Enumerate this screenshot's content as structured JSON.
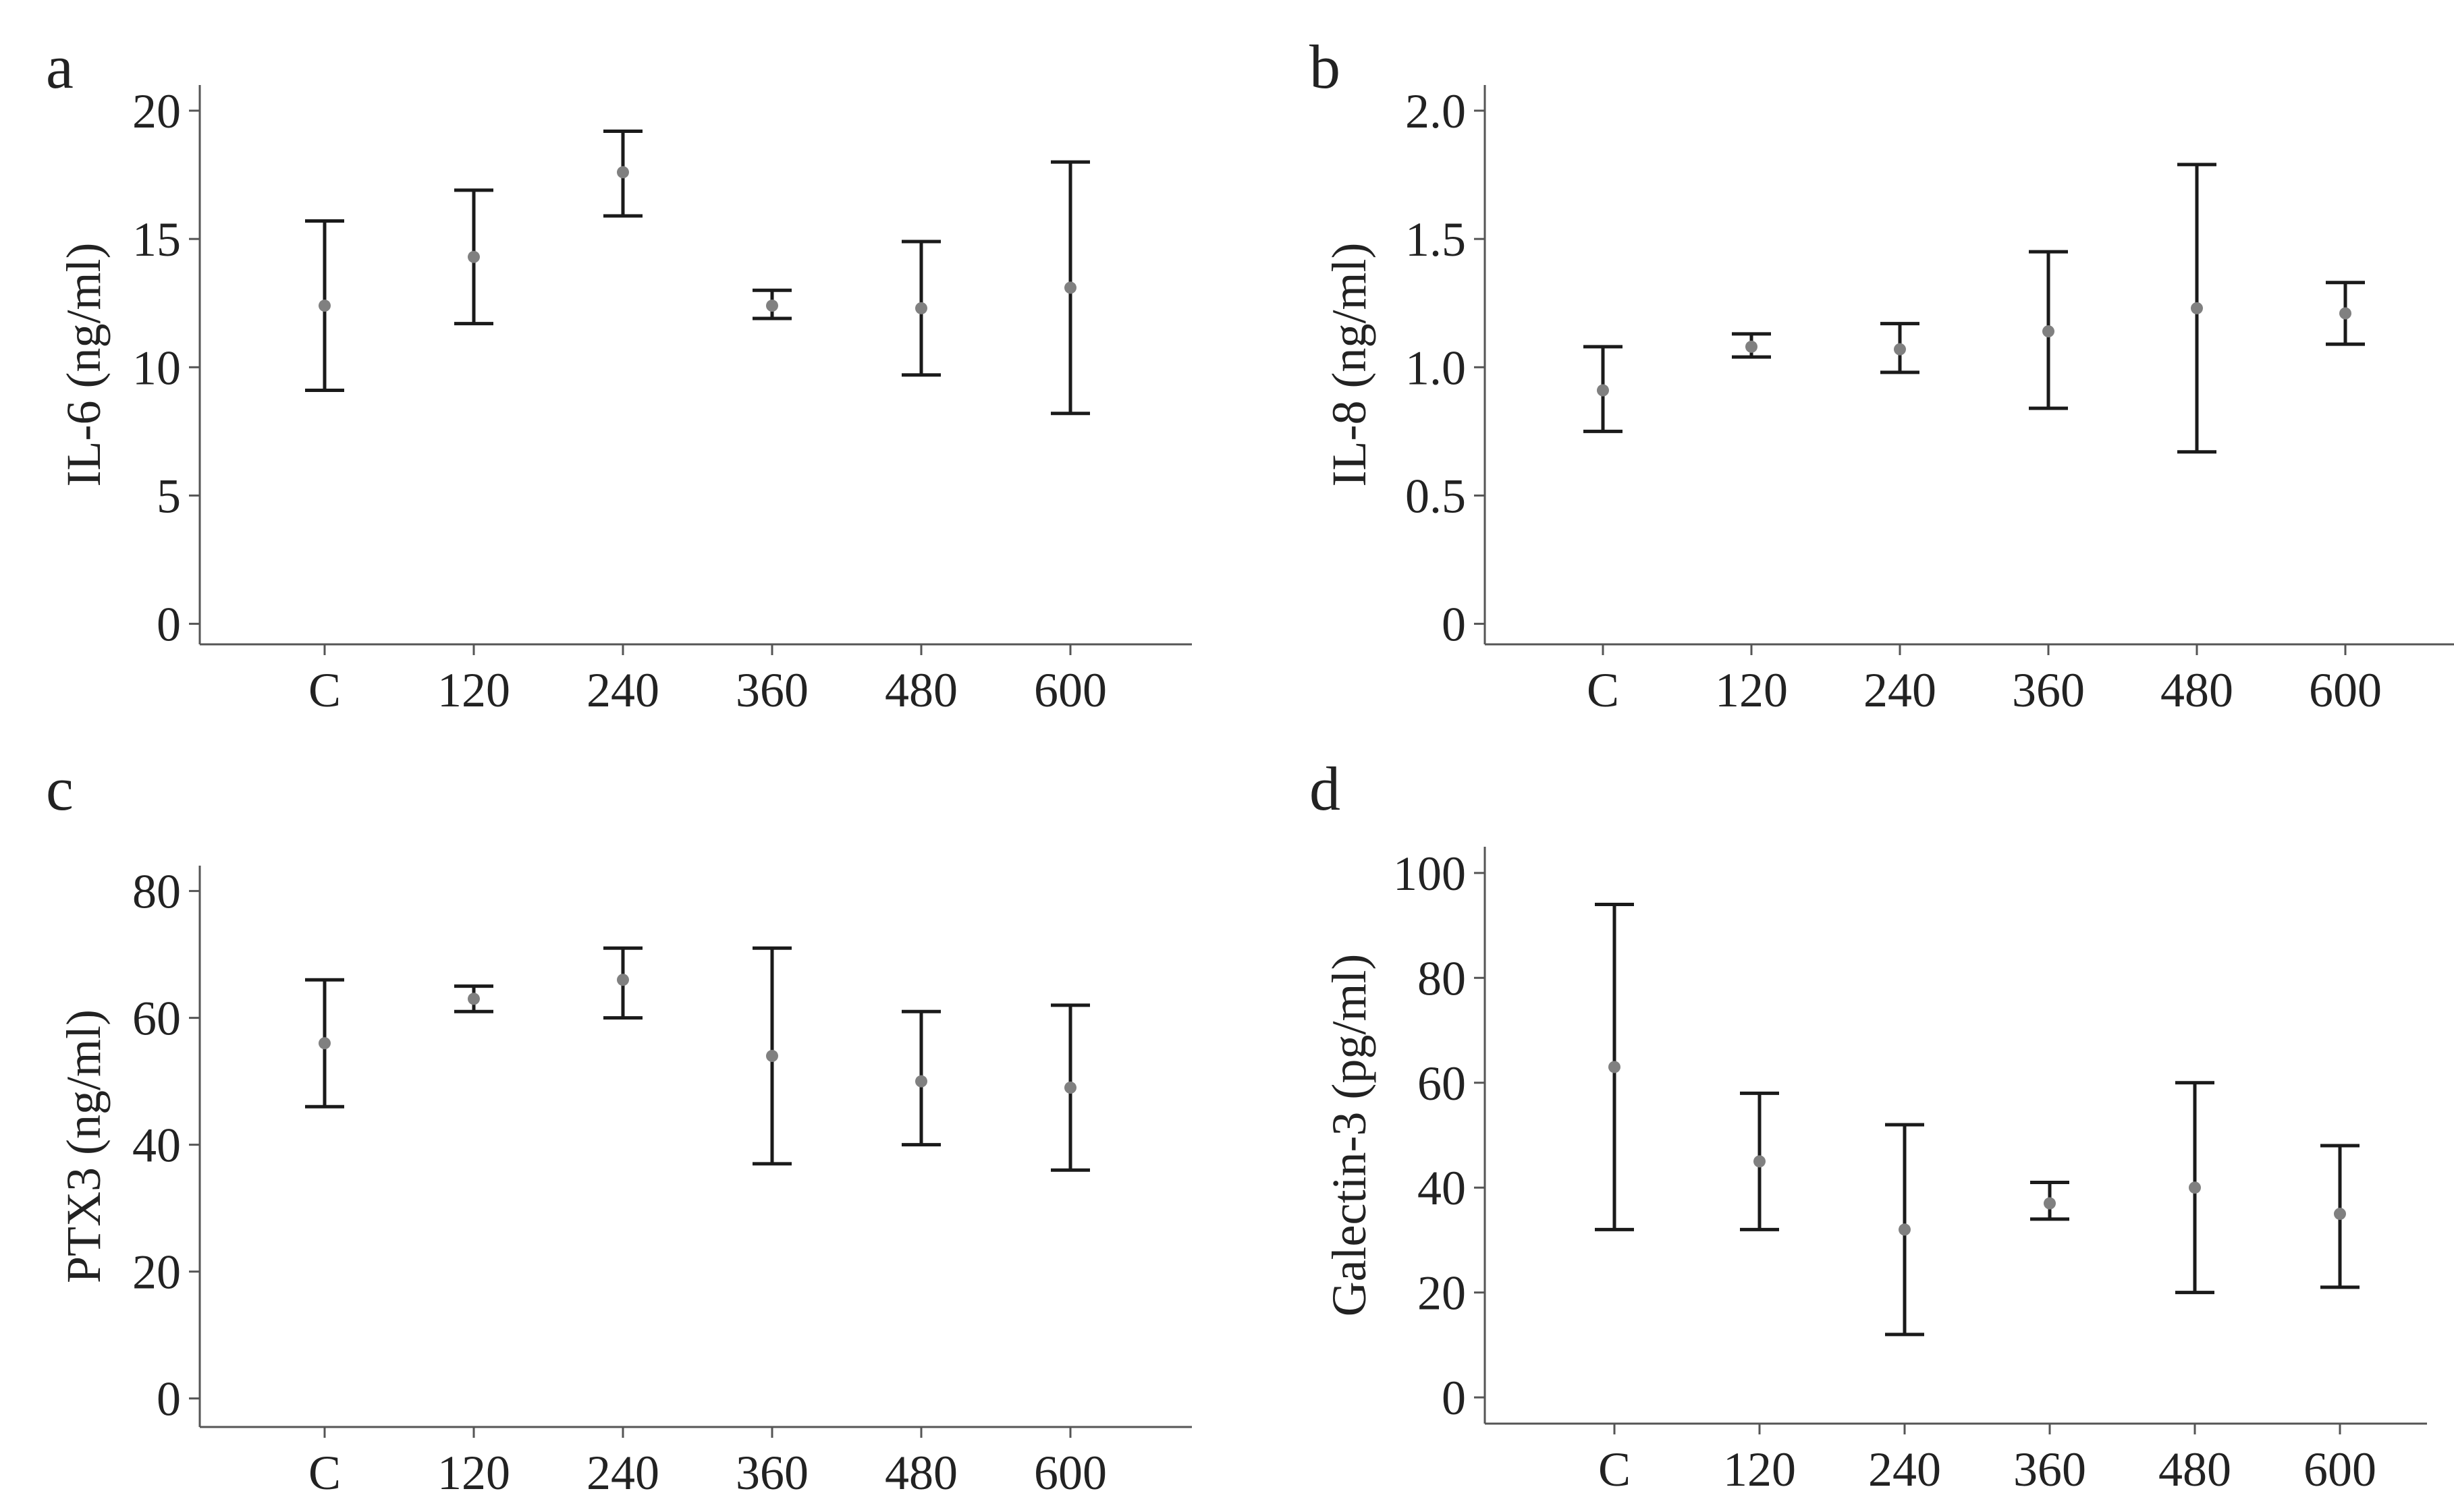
{
  "figure": {
    "colors": {
      "axis": "#555555",
      "errorbar": "#1a1a1a",
      "point": "#808080",
      "text": "#222222"
    }
  },
  "chart_data": [
    {
      "panel": "a",
      "type": "errorbar",
      "categories": [
        "C",
        "120",
        "240",
        "360",
        "480",
        "600"
      ],
      "series": [
        {
          "mean": [
            12.4,
            14.3,
            17.6,
            12.4,
            12.3,
            13.1
          ],
          "lower": [
            9.1,
            11.7,
            15.9,
            11.9,
            9.7,
            8.2
          ],
          "upper": [
            15.7,
            16.9,
            19.2,
            13.0,
            14.9,
            18.0
          ]
        }
      ],
      "xlabel": "",
      "ylabel": "IL-6 (ng/ml)",
      "yticks": [
        0,
        5,
        10,
        15,
        20
      ],
      "ytick_labels": [
        "0",
        "5",
        "10",
        "15",
        "20"
      ],
      "ylim": [
        -0.8,
        21
      ],
      "grid": false,
      "legend": "none"
    },
    {
      "panel": "b",
      "type": "errorbar",
      "categories": [
        "C",
        "120",
        "240",
        "360",
        "480",
        "600"
      ],
      "series": [
        {
          "mean": [
            0.91,
            1.08,
            1.07,
            1.14,
            1.23,
            1.21
          ],
          "lower": [
            0.75,
            1.04,
            0.98,
            0.84,
            0.67,
            1.09
          ],
          "upper": [
            1.08,
            1.13,
            1.17,
            1.45,
            1.79,
            1.33
          ]
        }
      ],
      "xlabel": "",
      "ylabel": "IL-8 (ng/ml)",
      "yticks": [
        0,
        0.5,
        1.0,
        1.5,
        2.0
      ],
      "ytick_labels": [
        "0",
        "0.5",
        "1.0",
        "1.5",
        "2.0"
      ],
      "ylim": [
        -0.08,
        2.1
      ],
      "grid": false,
      "legend": "none"
    },
    {
      "panel": "c",
      "type": "errorbar",
      "categories": [
        "C",
        "120",
        "240",
        "360",
        "480",
        "600"
      ],
      "series": [
        {
          "mean": [
            56,
            63,
            66,
            54,
            50,
            49
          ],
          "lower": [
            46,
            61,
            60,
            37,
            40,
            36
          ],
          "upper": [
            66,
            65,
            71,
            71,
            61,
            62
          ]
        }
      ],
      "xlabel": "",
      "ylabel": "PTX3 (ng/ml)",
      "yticks": [
        0,
        20,
        40,
        60,
        80
      ],
      "ytick_labels": [
        "0",
        "20",
        "40",
        "60",
        "80"
      ],
      "ylim": [
        -4.5,
        84
      ],
      "grid": false,
      "legend": "none"
    },
    {
      "panel": "d",
      "type": "errorbar",
      "categories": [
        "C",
        "120",
        "240",
        "360",
        "480",
        "600"
      ],
      "series": [
        {
          "mean": [
            63,
            45,
            32,
            37,
            40,
            35
          ],
          "lower": [
            32,
            32,
            12,
            34,
            20,
            21
          ],
          "upper": [
            94,
            58,
            52,
            41,
            60,
            48
          ]
        }
      ],
      "xlabel": "",
      "ylabel": "Galectin-3 (pg/ml)",
      "yticks": [
        0,
        20,
        40,
        60,
        80,
        100
      ],
      "ytick_labels": [
        "0",
        "20",
        "40",
        "60",
        "80",
        "100"
      ],
      "ylim": [
        -5,
        105
      ],
      "grid": false,
      "legend": "none"
    }
  ]
}
